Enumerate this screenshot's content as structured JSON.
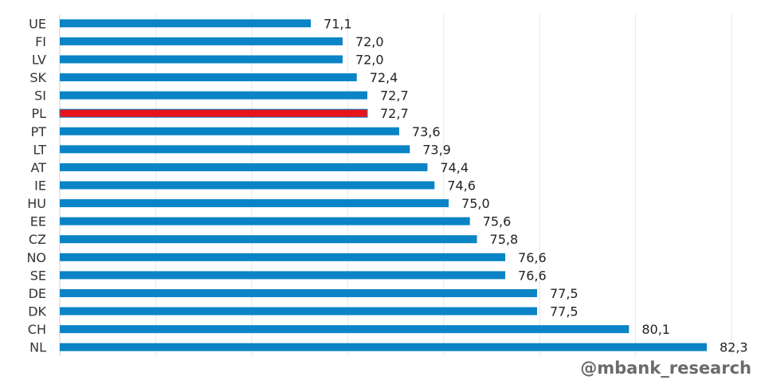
{
  "chart_data": {
    "type": "bar",
    "orientation": "horizontal",
    "categories": [
      "UE",
      "FI",
      "LV",
      "SK",
      "SI",
      "PL",
      "PT",
      "LT",
      "AT",
      "IE",
      "HU",
      "EE",
      "CZ",
      "NO",
      "SE",
      "DE",
      "DK",
      "CH",
      "NL"
    ],
    "values": [
      71.1,
      72.0,
      72.0,
      72.4,
      72.7,
      72.7,
      73.6,
      73.9,
      74.4,
      74.6,
      75.0,
      75.6,
      75.8,
      76.6,
      76.6,
      77.5,
      77.5,
      80.1,
      82.3
    ],
    "value_labels": [
      "71,1",
      "72,0",
      "72,0",
      "72,4",
      "72,7",
      "72,7",
      "73,6",
      "73,9",
      "74,4",
      "74,6",
      "75,0",
      "75,6",
      "75,8",
      "76,6",
      "76,6",
      "77,5",
      "77,5",
      "80,1",
      "82,3"
    ],
    "highlight": "PL",
    "xlim": [
      64,
      83
    ],
    "grid": true,
    "title": "",
    "xlabel": "",
    "ylabel": "",
    "bar_color": "#0A84C6",
    "highlight_color": "#E8141B",
    "grid_color": "#E6E6E6"
  },
  "watermark": "@mbank_research"
}
